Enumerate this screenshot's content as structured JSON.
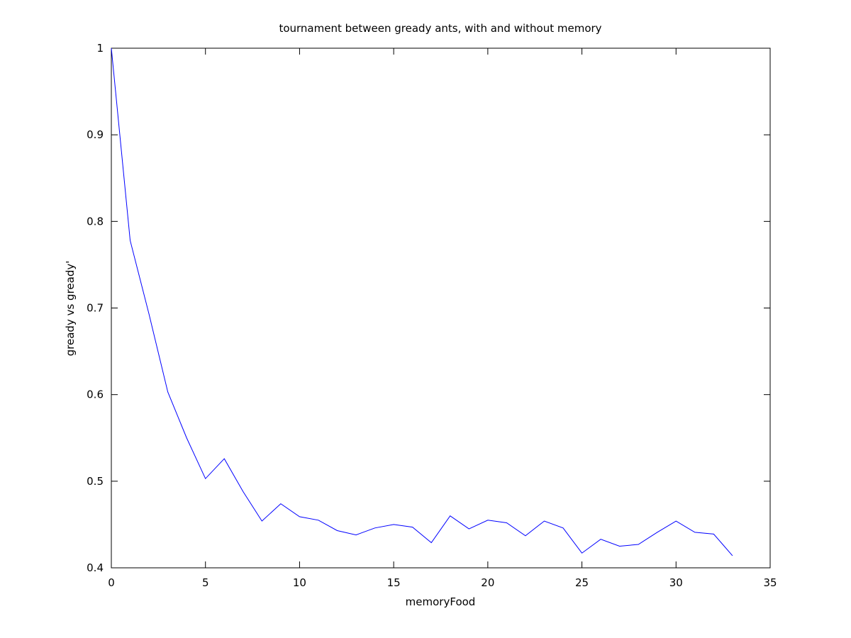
{
  "chart_data": {
    "type": "line",
    "title": "tournament between gready ants, with and without memory",
    "xlabel": "memoryFood",
    "ylabel": "gready vs gready'",
    "xlim": [
      0,
      35
    ],
    "ylim": [
      0.4,
      1.0
    ],
    "x_ticks": [
      "0",
      "5",
      "10",
      "15",
      "20",
      "25",
      "30",
      "35"
    ],
    "y_ticks": [
      "0.4",
      "0.5",
      "0.6",
      "0.7",
      "0.8",
      "0.9",
      "1"
    ],
    "grid": false,
    "series": [
      {
        "color": "#0000ff",
        "x": [
          0,
          1,
          2,
          3,
          4,
          5,
          6,
          7,
          8,
          9,
          10,
          11,
          12,
          13,
          14,
          15,
          16,
          17,
          18,
          19,
          20,
          21,
          22,
          23,
          24,
          25,
          26,
          27,
          28,
          29,
          30,
          31,
          32,
          33
        ],
        "values": [
          1.0,
          0.778,
          0.693,
          0.603,
          0.55,
          0.503,
          0.526,
          0.488,
          0.454,
          0.474,
          0.459,
          0.455,
          0.443,
          0.438,
          0.446,
          0.45,
          0.447,
          0.429,
          0.46,
          0.445,
          0.455,
          0.452,
          0.437,
          0.454,
          0.446,
          0.417,
          0.433,
          0.425,
          0.427,
          0.441,
          0.454,
          0.441,
          0.439,
          0.414
        ]
      }
    ]
  }
}
